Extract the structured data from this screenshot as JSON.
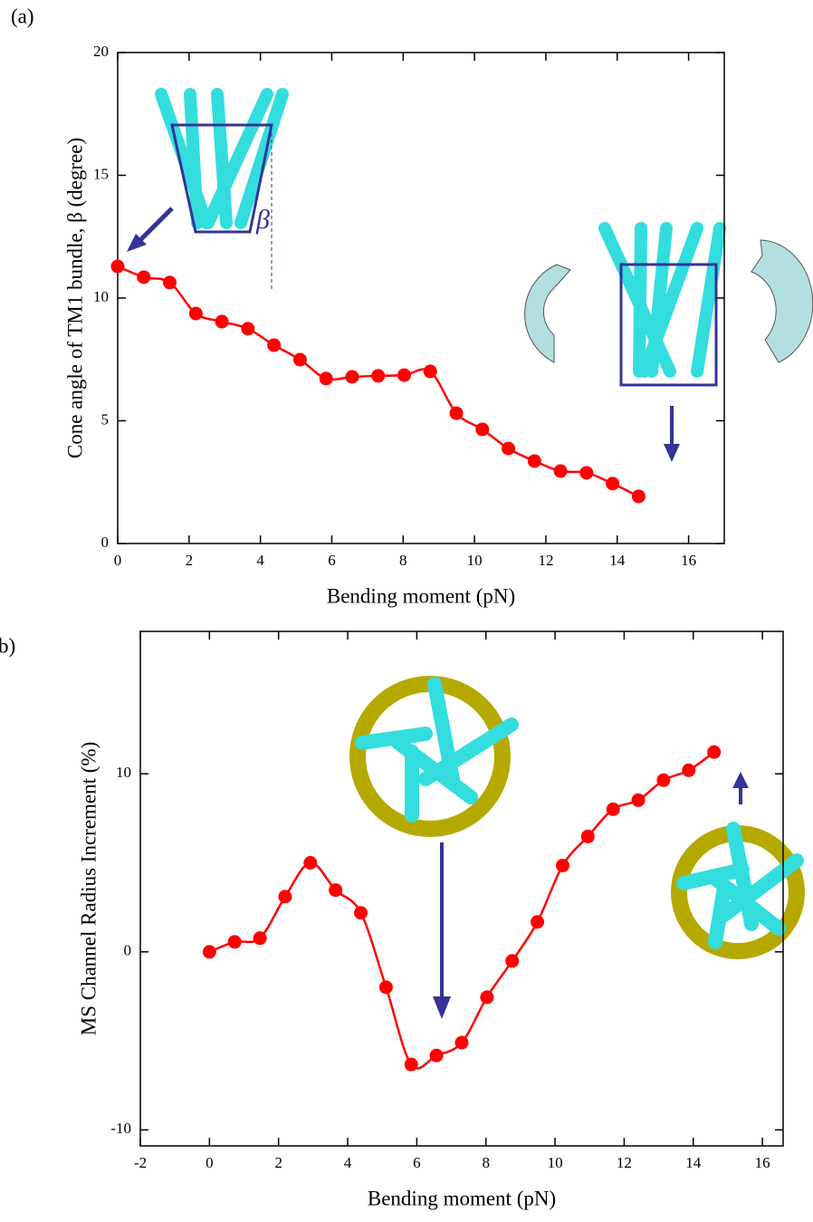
{
  "chart_data": [
    {
      "type": "line",
      "panel_label": "(a)",
      "x_label": "Bending moment (pN)",
      "y_label": "Cone angle of TM1 bundle, β (degree)",
      "inset_label": "β",
      "x": [
        0,
        0.73,
        1.46,
        2.19,
        2.92,
        3.65,
        4.38,
        5.11,
        5.84,
        6.57,
        7.3,
        8.03,
        8.76,
        9.49,
        10.22,
        10.95,
        11.68,
        12.41,
        13.14,
        13.87,
        14.6
      ],
      "values": [
        11.29,
        10.85,
        10.63,
        9.37,
        9.04,
        8.75,
        8.08,
        7.49,
        6.72,
        6.79,
        6.83,
        6.86,
        7.01,
        5.31,
        4.65,
        3.87,
        3.36,
        2.95,
        2.88,
        2.44,
        1.92
      ],
      "color": "#ff0000",
      "xlim": [
        0,
        17
      ],
      "ylim": [
        0,
        20
      ],
      "xticks": [
        0,
        2,
        4,
        6,
        8,
        10,
        12,
        14,
        16
      ],
      "yticks": [
        0,
        5,
        10,
        15,
        20
      ]
    },
    {
      "type": "line",
      "panel_label": "b)",
      "x_label": "Bending moment (pN)",
      "y_label": "MS Channel Radius Increment (%)",
      "x": [
        0,
        0.73,
        1.46,
        2.19,
        2.92,
        3.65,
        4.38,
        5.11,
        5.84,
        6.57,
        7.3,
        8.03,
        8.76,
        9.49,
        10.22,
        10.95,
        11.68,
        12.41,
        13.14,
        13.87,
        14.6
      ],
      "values": [
        0,
        0.56,
        0.77,
        3.1,
        5.0,
        3.47,
        2.19,
        -1.99,
        -6.33,
        -5.82,
        -5.1,
        -2.55,
        -0.51,
        1.68,
        4.85,
        6.48,
        8.01,
        8.52,
        9.64,
        10.2,
        11.22
      ],
      "color": "#ff0000",
      "xlim": [
        -2,
        16.6
      ],
      "ylim": [
        -10.9,
        18
      ],
      "xticks": [
        -2,
        0,
        2,
        4,
        6,
        8,
        10,
        12,
        14,
        16
      ],
      "yticks": [
        -10,
        0,
        10
      ]
    }
  ]
}
